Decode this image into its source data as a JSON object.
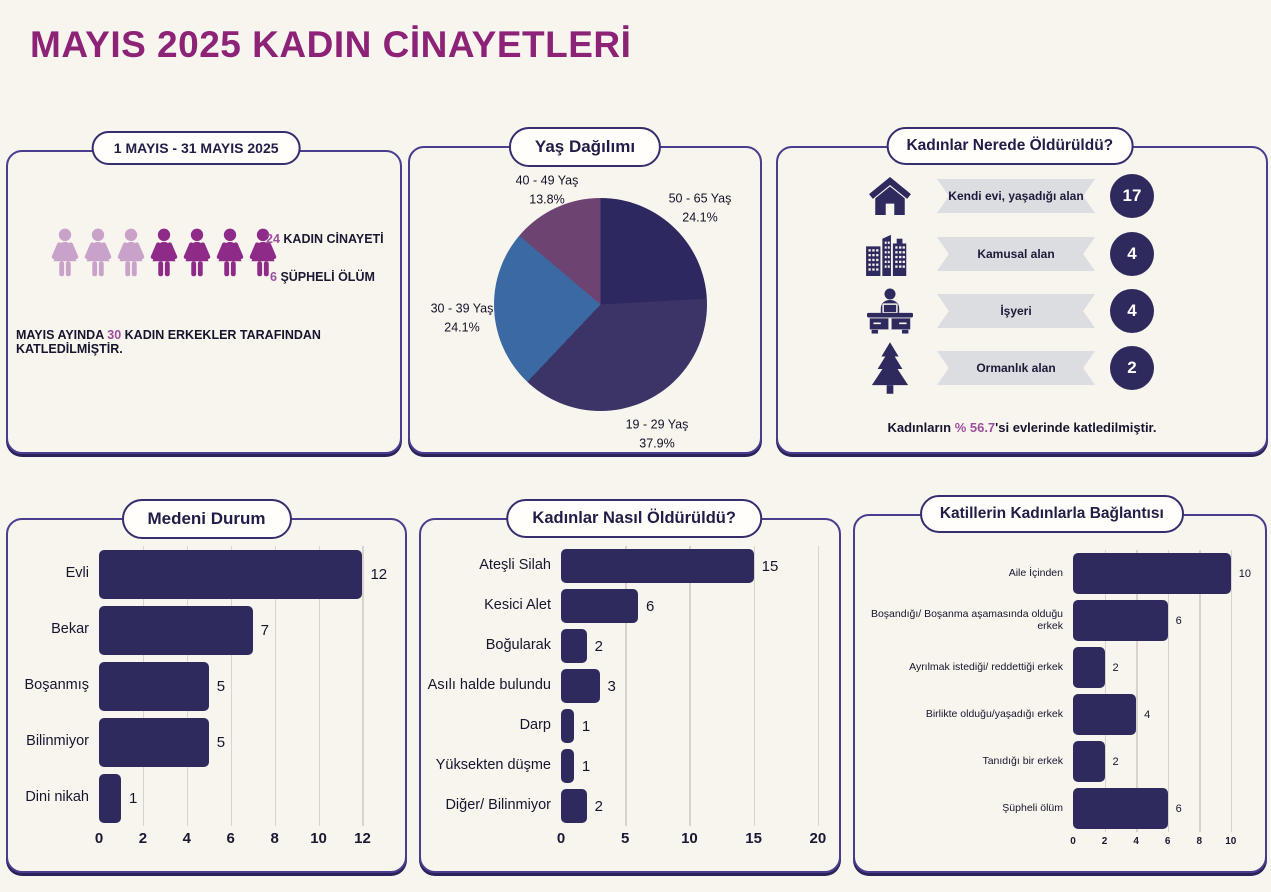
{
  "page": {
    "title": "MAYIS 2025 KADIN CİNAYETLERİ",
    "background_color": "#f8f4ee",
    "title_color": "#8c2377",
    "navy_color": "#2e2a5e",
    "accent_purple": "#9c4f9e"
  },
  "summary": {
    "pill": "1 MAYIS - 31 MAYIS 2025",
    "femicide": {
      "number": "24",
      "label": "KADIN CİNAYETİ"
    },
    "suspicious": {
      "number": "6",
      "label": "ŞÜPHELİ ÖLÜM"
    },
    "figures": {
      "light_count": 3,
      "dark_count": 4,
      "light_color": "#c9a2ca",
      "dark_color": "#8e2b88"
    },
    "statement": {
      "pre": "MAYIS AYINDA",
      "number": "30",
      "post": "KADIN ERKEKLER TARAFINDAN KATLEDİLMİŞTİR."
    }
  },
  "where_note": {
    "pre": "Kadınların",
    "highlight": "% 56.7",
    "post": "'si evlerinde katledilmiştir."
  },
  "chart_data": [
    {
      "type": "pie",
      "title": "Yaş Dağılımı",
      "labels": [
        "50 - 65 Yaş",
        "19 - 29 Yaş",
        "30 - 39 Yaş",
        "40 - 49 Yaş"
      ],
      "values": [
        24.1,
        37.9,
        24.1,
        13.8
      ],
      "pct_labels": [
        "24.1%",
        "37.9%",
        "24.1%",
        "13.8%"
      ],
      "colors": [
        "#2d2960",
        "#3c3367",
        "#3b69a3",
        "#6d4471"
      ],
      "start_angle": "top",
      "direction": "clockwise",
      "legend": "outside-labels"
    },
    {
      "type": "bar",
      "title": "Medeni Durum",
      "orientation": "horizontal",
      "categories": [
        "Evli",
        "Bekar",
        "Boşanmış",
        "Bilinmiyor",
        "Dini nikah"
      ],
      "values": [
        12,
        7,
        5,
        5,
        1
      ],
      "ticks": [
        0,
        2,
        4,
        6,
        8,
        10,
        12
      ],
      "xlim": [
        0,
        13.3
      ],
      "bar_color": "#2e2a5e",
      "grid": true
    },
    {
      "type": "bar",
      "title": "Kadınlar Nasıl Öldürüldü?",
      "orientation": "horizontal",
      "categories": [
        "Ateşli Silah",
        "Kesici Alet",
        "Boğularak",
        "Asılı halde bulundu",
        "Darp",
        "Yüksekten düşme",
        "Diğer/ Bilinmiyor"
      ],
      "values": [
        15,
        6,
        2,
        3,
        1,
        1,
        2
      ],
      "ticks": [
        0,
        5,
        10,
        15,
        20
      ],
      "xlim": [
        0,
        20.4
      ],
      "bar_color": "#2e2a5e",
      "grid": true
    },
    {
      "type": "bar",
      "title": "Katillerin Kadınlarla Bağlantısı",
      "orientation": "horizontal",
      "categories": [
        "Aile İçinden",
        "Boşandığı/ Boşanma aşamasında olduğu erkek",
        "Ayrılmak istediği/ reddettiği erkek",
        "Birlikte olduğu/yaşadığı erkek",
        "Tanıdığı bir erkek",
        "Şüpheli ölüm"
      ],
      "values": [
        10,
        6,
        2,
        4,
        2,
        6
      ],
      "ticks": [
        0,
        2,
        4,
        6,
        8,
        10
      ],
      "xlim": [
        0,
        10.9
      ],
      "bar_color": "#2e2a5e",
      "grid": true
    },
    {
      "type": "table",
      "title": "Kadınlar Nerede Öldürüldü?",
      "categories": [
        "Kendi evi, yaşadığı alan",
        "Kamusal alan",
        "İşyeri",
        "Ormanlık alan"
      ],
      "values": [
        17,
        4,
        4,
        2
      ],
      "icons": [
        "house-icon",
        "city-buildings-icon",
        "office-desk-icon",
        "pine-tree-icon"
      ]
    }
  ]
}
